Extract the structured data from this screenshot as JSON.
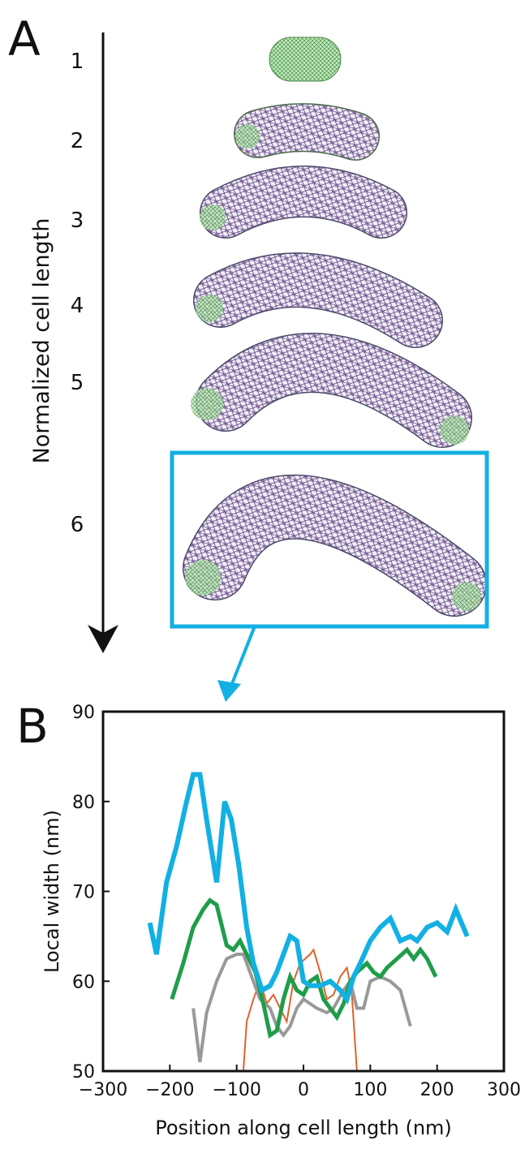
{
  "panel_labels": [
    "A",
    "B"
  ],
  "panel_a": {
    "axis_label": "Normalized cell length",
    "stages": [
      "1",
      "2",
      "3",
      "4",
      "5",
      "6"
    ]
  },
  "chart_data": {
    "type": "line",
    "x_label": "Position along cell length (nm)",
    "y_label": "Local width (nm)",
    "xlim": [
      -300,
      300
    ],
    "xticks": [
      {
        "value": -300,
        "label": "−300"
      },
      {
        "value": -200,
        "label": "−200"
      },
      {
        "value": -100,
        "label": "−100"
      },
      0,
      100,
      200,
      300
    ],
    "ylim": [
      50,
      90
    ],
    "yticks": [
      50,
      60,
      70,
      80,
      90
    ],
    "series": [
      {
        "color": "#e0622c",
        "width": 2,
        "x": [
          -90,
          -85,
          -75,
          -65,
          -55,
          -45,
          -35,
          -25,
          -15,
          -5,
          10,
          15,
          25,
          35,
          45,
          55,
          65,
          72,
          80
        ],
        "values": [
          50,
          55.5,
          58,
          60,
          57.5,
          58.5,
          57,
          55.5,
          60,
          62,
          63,
          63.5,
          61,
          58,
          58.5,
          60.5,
          61.5,
          59,
          50
        ]
      },
      {
        "color": "#999999",
        "width": 4,
        "x": [
          -165,
          -155,
          -145,
          -130,
          -115,
          -100,
          -90,
          -75,
          -65,
          -50,
          -40,
          -30,
          -20,
          -10,
          0,
          20,
          35,
          45,
          60,
          70,
          80,
          90,
          100,
          115,
          130,
          145,
          160
        ],
        "values": [
          57,
          51,
          56.5,
          60,
          62.5,
          63,
          63,
          60,
          58,
          57,
          55,
          54,
          55,
          57,
          58,
          57,
          56.5,
          57,
          59,
          60,
          57,
          57,
          60,
          60.5,
          60,
          59,
          55
        ]
      },
      {
        "color": "#1f9d4a",
        "width": 5,
        "x": [
          -197,
          -180,
          -165,
          -150,
          -140,
          -130,
          -115,
          -105,
          -95,
          -85,
          -72,
          -60,
          -50,
          -40,
          -30,
          -20,
          -10,
          0,
          10,
          20,
          30,
          40,
          50,
          60,
          70,
          80,
          95,
          105,
          115,
          125,
          140,
          155,
          165,
          175,
          185,
          198
        ],
        "values": [
          58,
          62,
          66,
          68,
          69,
          68.5,
          64,
          63.5,
          64.5,
          63,
          61,
          57.5,
          54,
          54.5,
          58,
          60.5,
          59,
          58.5,
          60,
          60.5,
          58,
          57,
          56,
          57.5,
          60,
          61,
          62,
          61,
          60.5,
          61.5,
          62.5,
          63.5,
          62.5,
          63.5,
          62.5,
          60.5
        ]
      },
      {
        "color": "#12b0e3",
        "width": 6,
        "x": [
          -230,
          -220,
          -205,
          -190,
          -175,
          -165,
          -155,
          -145,
          -130,
          -118,
          -108,
          -97,
          -85,
          -75,
          -62,
          -50,
          -40,
          -30,
          -20,
          -10,
          0,
          10,
          25,
          40,
          55,
          65,
          75,
          85,
          100,
          115,
          130,
          145,
          160,
          170,
          185,
          200,
          215,
          228,
          245
        ],
        "values": [
          66.5,
          63,
          71,
          75,
          80,
          83,
          83,
          78,
          71,
          80,
          78,
          73,
          66,
          62,
          59,
          59.5,
          61,
          63,
          65,
          64.5,
          60,
          59.5,
          59.5,
          60,
          59,
          58,
          60.5,
          62,
          64.5,
          66,
          67,
          64.5,
          65,
          64.5,
          66,
          66.5,
          65.5,
          68,
          65
        ]
      }
    ]
  }
}
